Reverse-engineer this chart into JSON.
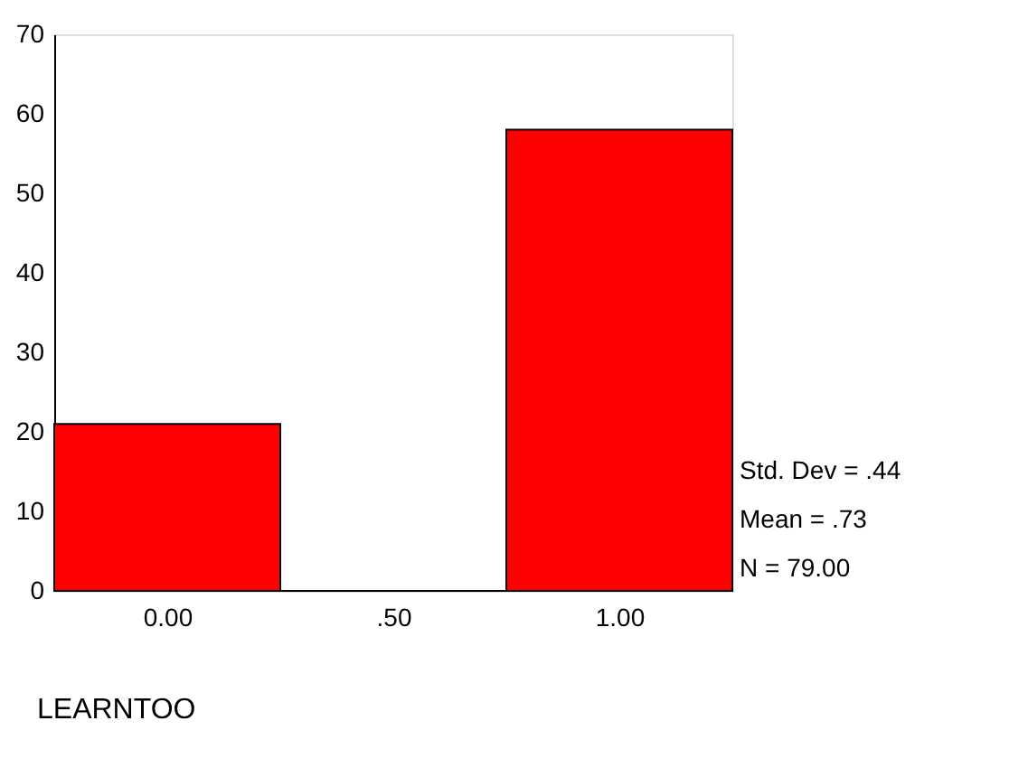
{
  "chart_data": {
    "type": "histogram",
    "xlabel": "LEARNTOO",
    "bins": [
      -0.25,
      0.25,
      0.75,
      1.25
    ],
    "values": [
      21,
      0,
      58
    ],
    "color": "#ff0000",
    "xlim": [
      -0.25,
      1.25
    ],
    "xticks": [
      {
        "value": 0,
        "label": "0.00"
      },
      {
        "value": 0.5,
        "label": ".50"
      },
      {
        "value": 1,
        "label": "1.00"
      }
    ],
    "ylim": [
      0,
      70
    ],
    "yticks": [
      0,
      10,
      20,
      30,
      40,
      50,
      60,
      70
    ],
    "grid": false,
    "annotations": [
      "Std. Dev = .44",
      "Mean = .73",
      "N = 79.00"
    ]
  }
}
